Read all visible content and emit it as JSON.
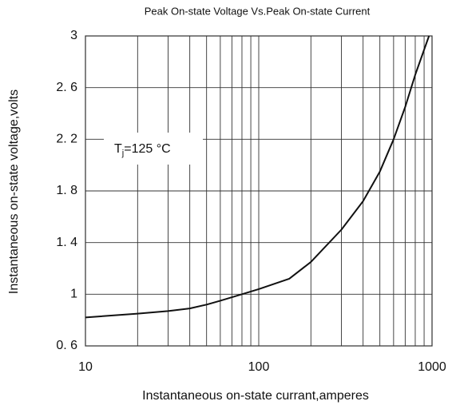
{
  "chart_data": {
    "type": "line",
    "title": "Peak On-state Voltage Vs.Peak On-state Current",
    "x_label": "Instantaneous on-state currant,amperes",
    "y_label": "Instantaneous on-state voltage,volts",
    "annotation": {
      "main": "T",
      "sub": "j",
      "rest": "=125 °C"
    },
    "x_log": true,
    "grid": true,
    "xlim": [
      10,
      1000
    ],
    "xticks": [
      10,
      100,
      1000
    ],
    "xminor_ticks": [
      20,
      30,
      40,
      50,
      60,
      70,
      80,
      90,
      200,
      300,
      400,
      500,
      600,
      700,
      800,
      900
    ],
    "ylim": [
      0.6,
      3
    ],
    "yticks": [
      {
        "value": 0.6,
        "label": "0. 6"
      },
      1,
      {
        "value": 1.4,
        "label": "1. 4"
      },
      {
        "value": 1.8,
        "label": "1. 8"
      },
      {
        "value": 2.2,
        "label": "2. 2"
      },
      {
        "value": 2.6,
        "label": "2. 6"
      },
      3
    ],
    "x": [
      10,
      20,
      30,
      40,
      50,
      60,
      80,
      100,
      150,
      200,
      300,
      400,
      500,
      600,
      700,
      800,
      960
    ],
    "series": [
      {
        "name": "Tj=125°C",
        "color": "#111111",
        "values": [
          0.82,
          0.85,
          0.87,
          0.89,
          0.92,
          0.95,
          1.0,
          1.04,
          1.12,
          1.25,
          1.5,
          1.72,
          1.95,
          2.2,
          2.45,
          2.7,
          3.0
        ]
      }
    ]
  }
}
